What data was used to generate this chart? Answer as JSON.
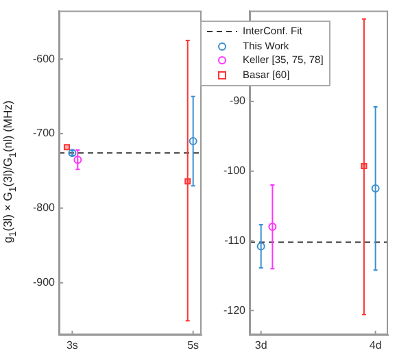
{
  "chart_data": [
    {
      "type": "scatter",
      "ylabel": "g$_{1}$(3l) × G$_{1}$(3l)/G$_{1}$(nl) (MHz)",
      "categories": [
        "3s",
        "5s"
      ],
      "ylim": [
        -970,
        -535
      ],
      "yticks": [
        -600,
        -700,
        -800,
        -900
      ],
      "grid": false,
      "legend": false,
      "ref_lines": [
        {
          "axis": "y",
          "value": -726,
          "color": "#333333",
          "line_style": "dashed"
        }
      ],
      "series": [
        {
          "color": "#3a8fd0",
          "marker": "circle",
          "x": [
            "3s",
            "5s"
          ],
          "values": [
            -726,
            -710
          ],
          "errors": [
            3,
            60
          ]
        },
        {
          "color": "#ff33ff",
          "marker": "circle",
          "x": [
            "3s"
          ],
          "values": [
            -735
          ],
          "errors": [
            13
          ]
        },
        {
          "color": "#ff3333",
          "marker": "square",
          "x": [
            "3s",
            "5s"
          ],
          "values": [
            -718,
            -764
          ],
          "errors": [
            null,
            [
              -951,
              -575
            ]
          ]
        }
      ]
    },
    {
      "type": "scatter",
      "categories": [
        "3d",
        "4d"
      ],
      "ylim": [
        -123.5,
        -77
      ],
      "yticks": [
        -90,
        -100,
        -110,
        -120
      ],
      "grid": false,
      "legend": "top left",
      "ref_lines": [
        {
          "axis": "y",
          "value": -110.2,
          "label": "InterConf. Fit",
          "color": "#333333",
          "line_style": "dashed"
        }
      ],
      "series": [
        {
          "name": "This Work",
          "color": "#3a8fd0",
          "marker": "circle",
          "x": [
            "3d",
            "4d"
          ],
          "values": [
            -110.8,
            -102.5
          ],
          "errors": [
            3.1,
            11.7
          ]
        },
        {
          "name": "Keller [35, 75, 78]",
          "color": "#ff33ff",
          "marker": "circle",
          "x": [
            "3d"
          ],
          "values": [
            -108
          ],
          "errors": [
            6
          ]
        },
        {
          "name": "Basar [60]",
          "color": "#ff3333",
          "marker": "square",
          "x": [
            "4d"
          ],
          "values": [
            -99.3
          ],
          "errors": [
            [
              -120.6,
              -78.2
            ]
          ]
        }
      ]
    }
  ]
}
